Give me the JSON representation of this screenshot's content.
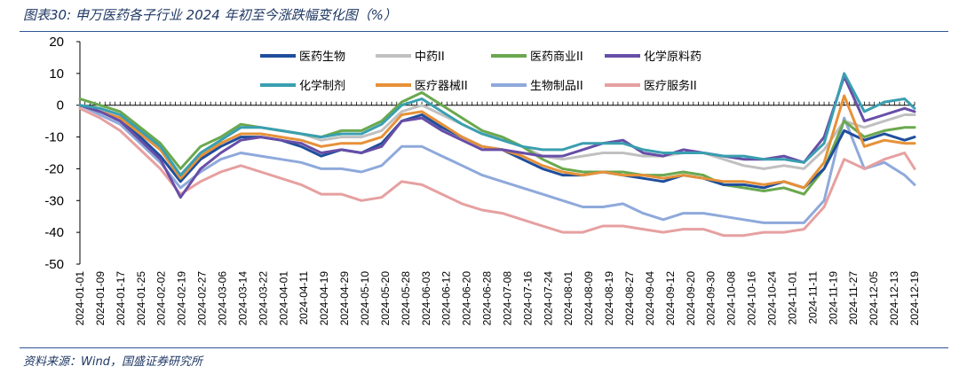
{
  "figure": {
    "title": "图表30:  申万医药各子行业 2024 年初至今涨跌幅变化图（%）",
    "source": "资料来源：Wind，国盛证券研究所"
  },
  "chart_data": {
    "type": "line",
    "title": "图表30:  申万医药各子行业 2024 年初至今涨跌幅变化图（%）",
    "xlabel": "",
    "ylabel": "",
    "ylim": [
      -50,
      20
    ],
    "yticks": [
      20,
      10,
      0,
      -10,
      -20,
      -30,
      -40,
      -50
    ],
    "grid": false,
    "legend_position": "top-center",
    "x_tick_labels": [
      "2024-01-01",
      "2024-01-09",
      "2024-01-17",
      "2024-01-25",
      "2024-02-02",
      "2024-02-19",
      "2024-02-27",
      "2024-03-06",
      "2024-03-14",
      "2024-03-22",
      "2024-04-01",
      "2024-04-11",
      "2024-04-19",
      "2024-04-29",
      "2024-05-10",
      "2024-05-20",
      "2024-05-28",
      "2024-06-03",
      "2024-06-12",
      "2024-06-20",
      "2024-06-28",
      "2024-07-08",
      "2024-07-16",
      "2024-07-24",
      "2024-08-01",
      "2024-08-09",
      "2024-08-19",
      "2024-08-27",
      "2024-09-04",
      "2024-09-12",
      "2024-09-20",
      "2024-09-30",
      "2024-10-08",
      "2024-10-16",
      "2024-10-24",
      "2024-11-01",
      "2024-11-11",
      "2024-11-19",
      "2024-11-27",
      "2024-12-05",
      "2024-12-13",
      "2024-12-19"
    ],
    "x": [
      0,
      2,
      4,
      6,
      8,
      10,
      12,
      14,
      16,
      18,
      20,
      22,
      24,
      26,
      28,
      30,
      32,
      34,
      36,
      38,
      40,
      42,
      44,
      46,
      48,
      50,
      52,
      54,
      56,
      58,
      60,
      62,
      64,
      66,
      68,
      70,
      72,
      74,
      76,
      78,
      80,
      82,
      83
    ],
    "series": [
      {
        "name": "医药生物",
        "color": "#1f4e9c",
        "values": [
          0,
          -2,
          -4,
          -10,
          -16,
          -24,
          -17,
          -13,
          -10,
          -10,
          -11,
          -13,
          -16,
          -14,
          -15,
          -12,
          -5,
          -3,
          -7,
          -10,
          -13,
          -14,
          -17,
          -20,
          -22,
          -22,
          -21,
          -22,
          -23,
          -24,
          -22,
          -23,
          -25,
          -25,
          -26,
          -24,
          -26,
          -20,
          -8,
          -11,
          -9,
          -11,
          -10
        ]
      },
      {
        "name": "中药II",
        "color": "#c0c0c0",
        "values": [
          0,
          -1,
          -3,
          -8,
          -13,
          -22,
          -15,
          -11,
          -7,
          -7,
          -8,
          -9,
          -11,
          -10,
          -10,
          -8,
          -2,
          0,
          -3,
          -6,
          -9,
          -10,
          -13,
          -16,
          -17,
          -16,
          -15,
          -15,
          -16,
          -16,
          -15,
          -15,
          -17,
          -19,
          -20,
          -19,
          -20,
          -14,
          -5,
          -7,
          -5,
          -3,
          -3
        ]
      },
      {
        "name": "医药商业II",
        "color": "#6aa84f",
        "values": [
          2,
          0,
          -2,
          -7,
          -12,
          -20,
          -13,
          -10,
          -6,
          -7,
          -8,
          -9,
          -10,
          -8,
          -8,
          -5,
          1,
          4,
          0,
          -4,
          -8,
          -10,
          -13,
          -17,
          -20,
          -21,
          -21,
          -21,
          -22,
          -22,
          -21,
          -22,
          -25,
          -26,
          -27,
          -26,
          -28,
          -20,
          -5,
          -10,
          -8,
          -7,
          -7
        ]
      },
      {
        "name": "化学原料药",
        "color": "#674ea7",
        "values": [
          0,
          -2,
          -5,
          -11,
          -17,
          -29,
          -20,
          -15,
          -11,
          -10,
          -11,
          -12,
          -15,
          -14,
          -15,
          -13,
          -5,
          -4,
          -8,
          -11,
          -14,
          -14,
          -15,
          -16,
          -16,
          -14,
          -12,
          -11,
          -15,
          -16,
          -14,
          -15,
          -16,
          -17,
          -17,
          -16,
          -18,
          -10,
          9,
          -5,
          -3,
          -1,
          -2
        ]
      },
      {
        "name": "化学制剂",
        "color": "#3a9fb0",
        "values": [
          0,
          -1,
          -3,
          -8,
          -13,
          -22,
          -15,
          -11,
          -7,
          -7,
          -8,
          -9,
          -10,
          -9,
          -9,
          -6,
          0,
          2,
          -2,
          -6,
          -9,
          -11,
          -13,
          -14,
          -14,
          -12,
          -12,
          -12,
          -14,
          -15,
          -15,
          -15,
          -16,
          -16,
          -17,
          -17,
          -18,
          -12,
          10,
          -2,
          1,
          2,
          -1
        ]
      },
      {
        "name": "医疗器械II",
        "color": "#e69138",
        "values": [
          0,
          -2,
          -4,
          -9,
          -14,
          -23,
          -16,
          -12,
          -9,
          -9,
          -10,
          -11,
          -13,
          -12,
          -12,
          -10,
          -3,
          -2,
          -6,
          -10,
          -13,
          -14,
          -16,
          -19,
          -21,
          -22,
          -21,
          -22,
          -22,
          -23,
          -22,
          -23,
          -24,
          -24,
          -25,
          -24,
          -26,
          -18,
          3,
          -13,
          -11,
          -12,
          -12
        ]
      },
      {
        "name": "生物制品II",
        "color": "#8ea9db",
        "values": [
          0,
          -3,
          -6,
          -12,
          -18,
          -26,
          -21,
          -17,
          -15,
          -16,
          -17,
          -18,
          -20,
          -20,
          -21,
          -19,
          -13,
          -13,
          -16,
          -19,
          -22,
          -24,
          -26,
          -28,
          -30,
          -32,
          -32,
          -31,
          -34,
          -36,
          -34,
          -34,
          -35,
          -36,
          -37,
          -37,
          -37,
          -30,
          -4,
          -20,
          -18,
          -22,
          -25
        ]
      },
      {
        "name": "医疗服务II",
        "color": "#e6a0a0",
        "values": [
          -1,
          -4,
          -8,
          -14,
          -20,
          -28,
          -24,
          -21,
          -19,
          -21,
          -23,
          -25,
          -28,
          -28,
          -30,
          -29,
          -24,
          -25,
          -28,
          -31,
          -33,
          -34,
          -36,
          -38,
          -40,
          -40,
          -38,
          -38,
          -39,
          -40,
          -39,
          -39,
          -41,
          -41,
          -40,
          -40,
          -39,
          -32,
          -17,
          -20,
          -17,
          -15,
          -20
        ]
      }
    ]
  }
}
